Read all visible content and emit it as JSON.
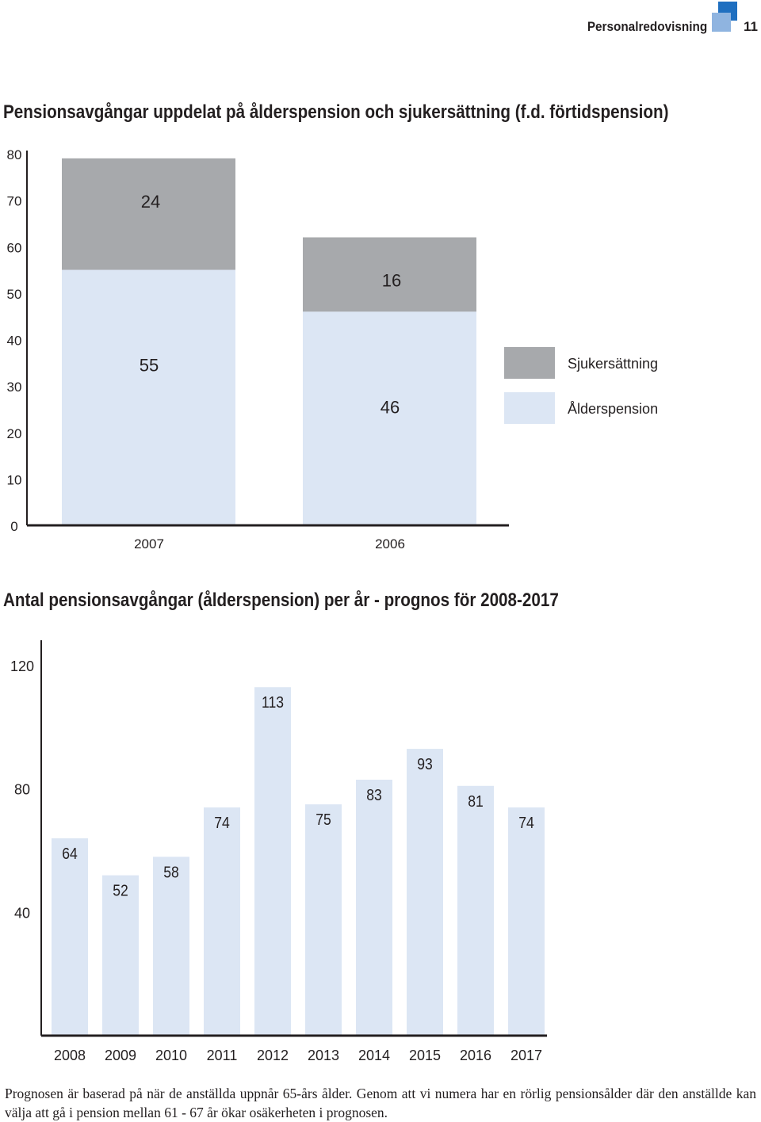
{
  "header": {
    "section_title": "Personalredovisning",
    "page_number": "11",
    "colors": {
      "logo_dark": "#1f6fc0",
      "logo_light": "#8fb4e0"
    }
  },
  "chart_data": [
    {
      "type": "bar",
      "stacked": true,
      "title": "Pensionsavgångar uppdelat på ålderspension och sjukersättning (f.d. förtidspension)",
      "categories": [
        "2007",
        "2006"
      ],
      "series": [
        {
          "name": "Ålderspension",
          "values": [
            55,
            46
          ],
          "color": "#dce6f4"
        },
        {
          "name": "Sjukersättning",
          "values": [
            24,
            16
          ],
          "color": "#a7a9ac"
        }
      ],
      "y_ticks": [
        0,
        10,
        20,
        30,
        40,
        50,
        60,
        70,
        80
      ],
      "ylim": [
        0,
        80
      ],
      "legend": "right",
      "legend_order": [
        "Sjukersättning",
        "Ålderspension"
      ],
      "grid": false
    },
    {
      "type": "bar",
      "title": "Antal pensionsavgångar (ålderspension) per år - prognos för 2008-2017",
      "categories": [
        "2008",
        "2009",
        "2010",
        "2011",
        "2012",
        "2013",
        "2014",
        "2015",
        "2016",
        "2017"
      ],
      "values": [
        64,
        52,
        58,
        74,
        113,
        75,
        83,
        93,
        81,
        74
      ],
      "color": "#dce6f4",
      "y_ticks": [
        40,
        80,
        120
      ],
      "ylim": [
        0,
        120
      ],
      "grid": false
    }
  ],
  "note": "Prognosen är baserad på när de anställda uppnår 65-års ålder. Genom att vi numera har en rörlig pensionsålder där den anställde kan välja att gå i pension mellan 61 - 67 år ökar osäkerheten i prognosen."
}
